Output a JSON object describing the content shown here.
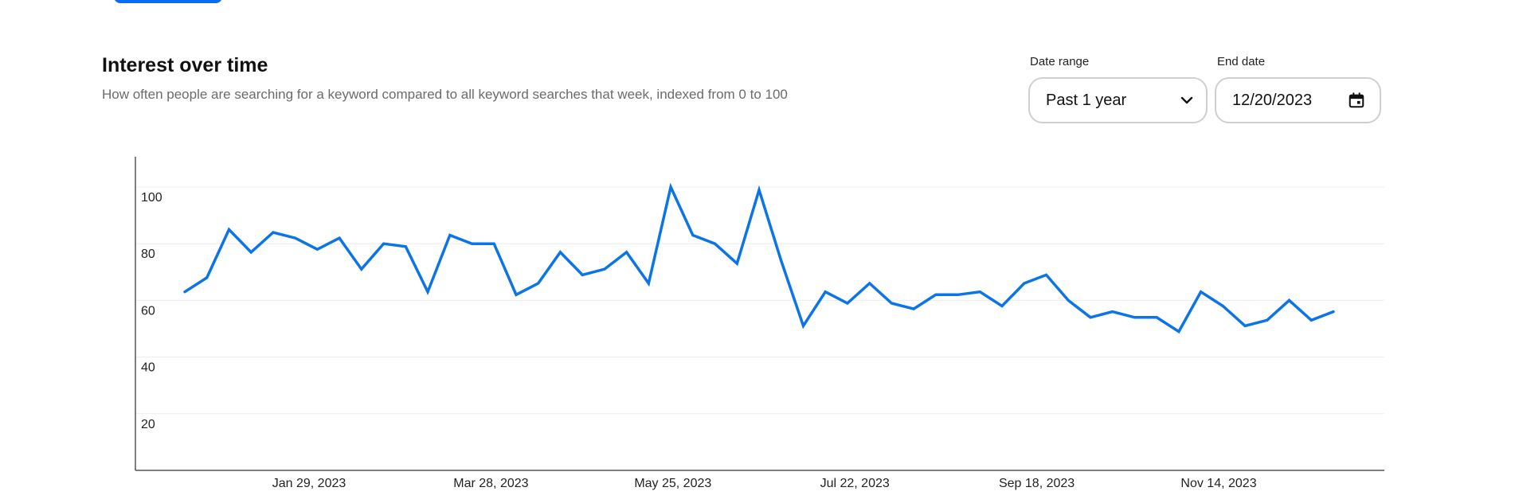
{
  "colors": {
    "accent": "#0a74e8",
    "gridline": "#ececec",
    "axis": "#555555"
  },
  "header": {
    "title": "Interest over time",
    "subtitle": "How often people are searching for a keyword compared to all keyword searches that week, indexed from 0 to 100"
  },
  "controls": {
    "date_range": {
      "label": "Date range",
      "value": "Past 1 year",
      "icon": "chevron-down-icon"
    },
    "end_date": {
      "label": "End date",
      "value": "12/20/2023",
      "icon": "calendar-icon"
    }
  },
  "chart_data": {
    "type": "line",
    "title": "",
    "xlabel": "",
    "ylabel": "",
    "ylim": [
      0,
      105
    ],
    "y_ticks": [
      20,
      40,
      60,
      80,
      100
    ],
    "x_tick_labels": [
      "Jan 29, 2023",
      "Mar 28, 2023",
      "May 25, 2023",
      "Jul 22, 2023",
      "Sep 18, 2023",
      "Nov 14, 2023"
    ],
    "x": [
      0,
      1,
      2,
      3,
      4,
      5,
      6,
      7,
      8,
      9,
      10,
      11,
      12,
      13,
      14,
      15,
      16,
      17,
      18,
      19,
      20,
      21,
      22,
      23,
      24,
      25,
      26,
      27,
      28,
      29,
      30,
      31,
      32,
      33,
      34,
      35,
      36,
      37,
      38,
      39,
      40,
      41,
      42,
      43,
      44,
      45,
      46,
      47,
      48,
      49,
      50,
      51,
      52
    ],
    "series": [
      {
        "values": [
          63,
          68,
          85,
          77,
          84,
          82,
          78,
          82,
          71,
          80,
          79,
          63,
          83,
          80,
          80,
          62,
          66,
          77,
          69,
          71,
          77,
          66,
          100,
          83,
          80,
          73,
          99,
          74,
          51,
          63,
          59,
          66,
          59,
          57,
          62,
          62,
          63,
          58,
          66,
          69,
          60,
          54,
          56,
          54,
          54,
          49,
          63,
          58,
          51,
          53,
          60,
          53,
          56
        ]
      }
    ],
    "grid": true,
    "legend": "none"
  }
}
